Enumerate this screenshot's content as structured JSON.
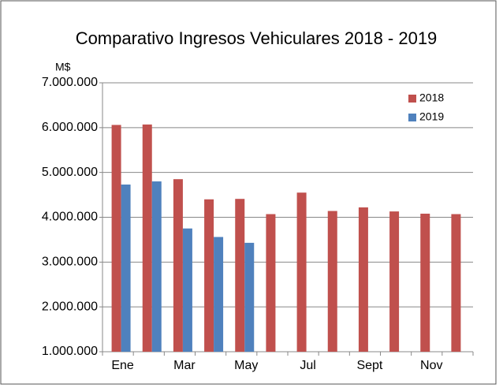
{
  "chart_data": {
    "type": "bar",
    "title": "Comparativo Ingresos Vehiculares 2018 - 2019",
    "y_axis_label": "M$",
    "categories": [
      "Ene",
      null,
      "Mar",
      null,
      "May",
      null,
      "Jul",
      null,
      "Sept",
      null,
      "Nov",
      null
    ],
    "series": [
      {
        "name": "2018",
        "color": "#c0504d",
        "values": [
          6060000,
          6070000,
          4850000,
          4400000,
          4410000,
          4070000,
          4550000,
          4140000,
          4220000,
          4130000,
          4080000,
          4070000
        ]
      },
      {
        "name": "2019",
        "color": "#4f81bd",
        "values": [
          4730000,
          4800000,
          3750000,
          3560000,
          3430000,
          null,
          null,
          null,
          null,
          null,
          null,
          null
        ]
      }
    ],
    "ylim": [
      1000000,
      7000000
    ],
    "yticks": [
      {
        "value": 1000000,
        "label": "1.000.000"
      },
      {
        "value": 2000000,
        "label": "2.000.000"
      },
      {
        "value": 3000000,
        "label": "3.000.000"
      },
      {
        "value": 4000000,
        "label": "4.000.000"
      },
      {
        "value": 5000000,
        "label": "5.000.000"
      },
      {
        "value": 6000000,
        "label": "6.000.000"
      },
      {
        "value": 7000000,
        "label": "7.000.000"
      }
    ],
    "grid": true,
    "legend": "top-right"
  }
}
